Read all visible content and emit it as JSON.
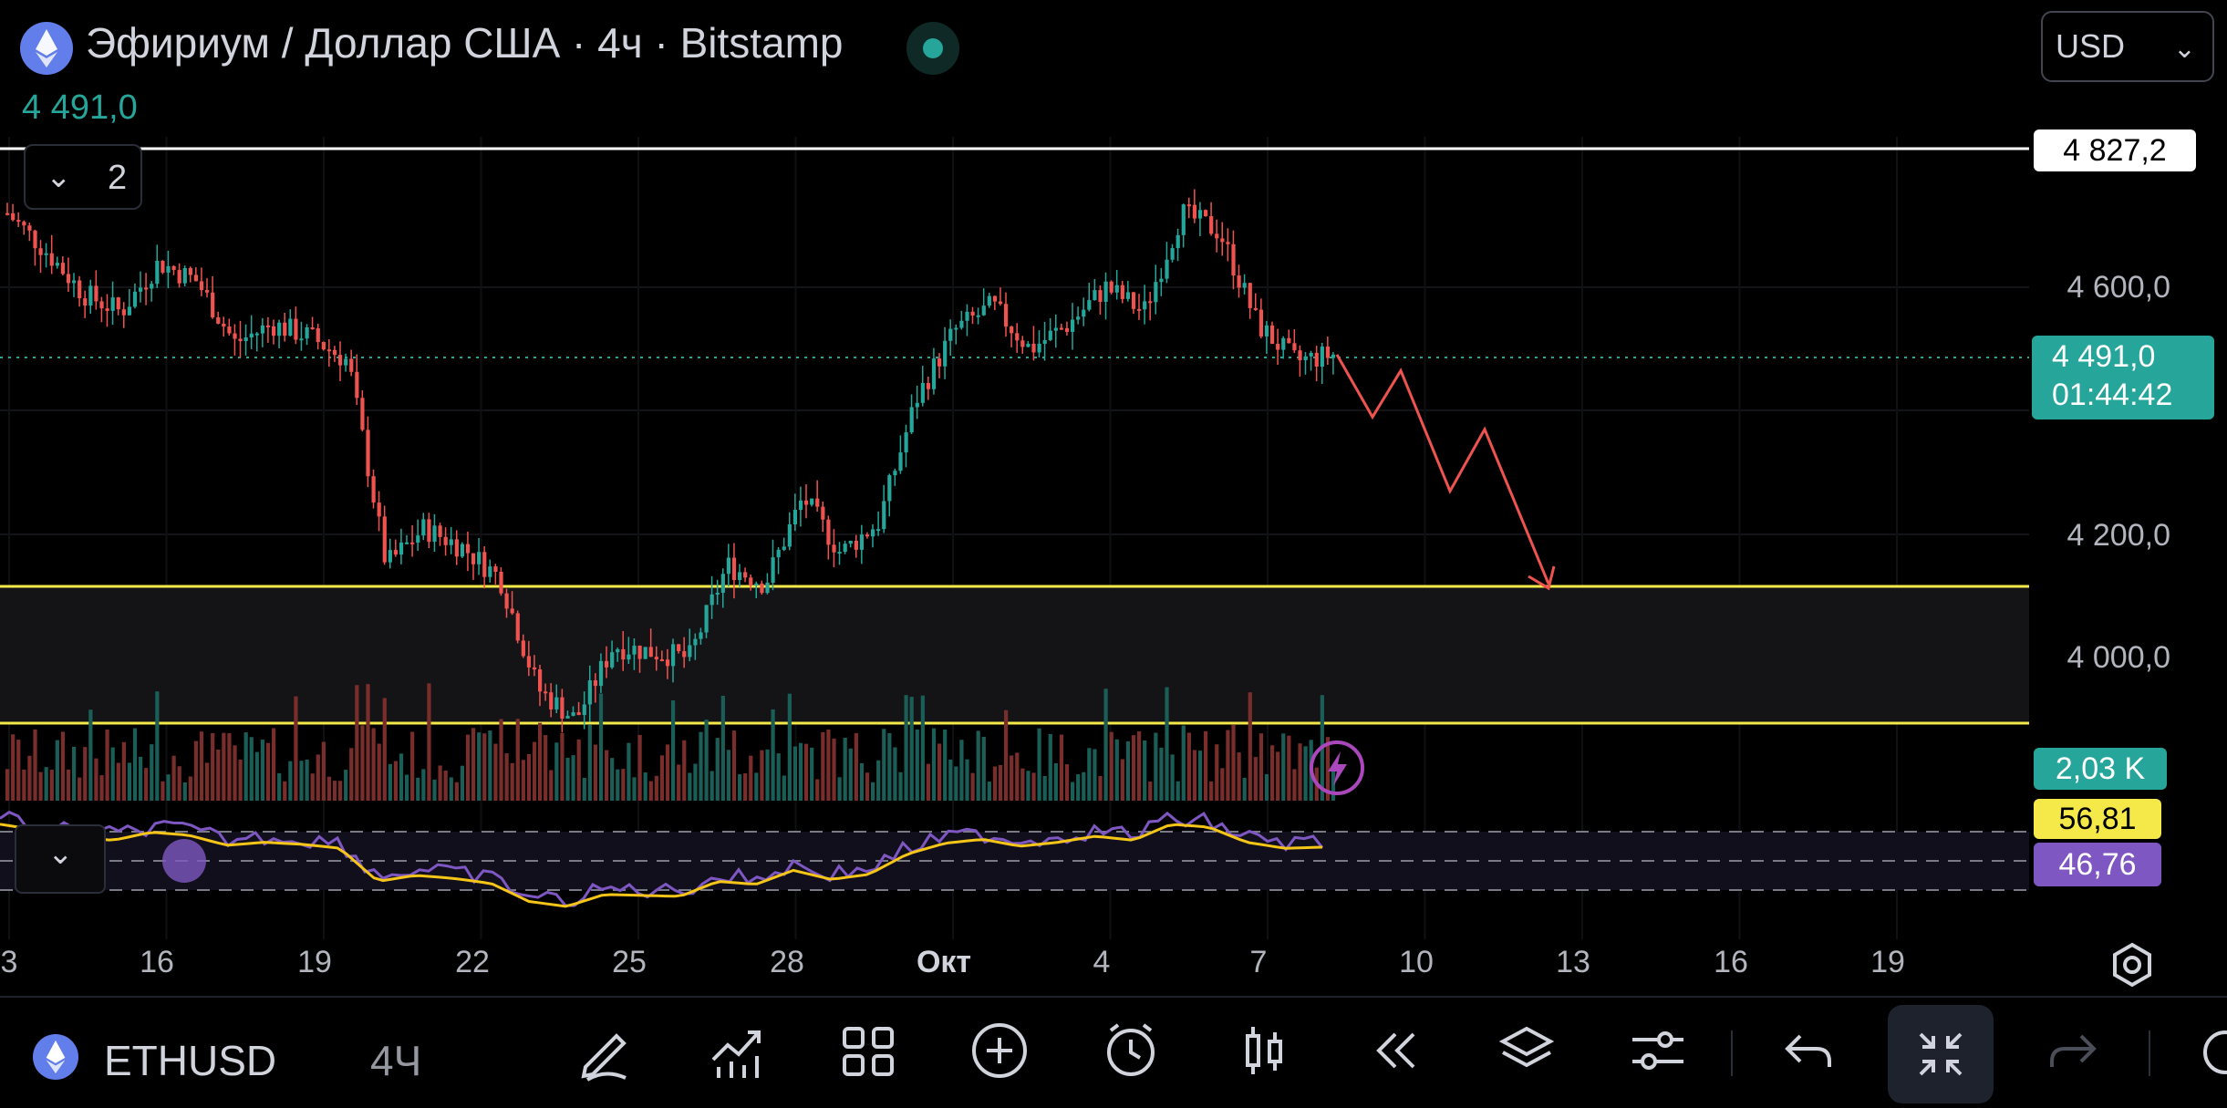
{
  "header": {
    "title": "Эфириум / Доллар США · 4ч · Bitstamp",
    "current_price": "4 491,0",
    "currency": "USD",
    "indicator_count": "2"
  },
  "price_labels": {
    "high_line": "4 827,2",
    "last_price": "4 491,0",
    "countdown": "01:44:42",
    "volume": "2,03 K",
    "ma_value": "56,81",
    "rsi_value": "46,76"
  },
  "price_axis": [
    "4 600,0",
    "4 200,0",
    "4 000,0"
  ],
  "date_axis": [
    "3",
    "16",
    "19",
    "22",
    "25",
    "28",
    "Окт",
    "4",
    "7",
    "10",
    "13",
    "16",
    "19"
  ],
  "toolbar": {
    "symbol": "ETHUSD",
    "interval": "4Ч"
  },
  "icons": {
    "logo": "ethereum-icon",
    "tools": [
      "pencil-icon",
      "indicators-icon",
      "layouts-icon",
      "add-icon",
      "alert-clock-icon",
      "candle-type-icon",
      "replay-icon",
      "layers-icon",
      "settings-sliders-icon",
      "undo-icon",
      "collapse-icon",
      "redo-icon"
    ]
  },
  "colors": {
    "up": "#26a69a",
    "down": "#ef5350",
    "support_line": "#f5e94a",
    "rsi": "#7e57c2",
    "ma": "#f5c518",
    "projection": "#ef5350"
  },
  "chart_data": {
    "type": "candlestick",
    "instrument": "ETHUSD",
    "interval": "4h",
    "x_labels": [
      "3",
      "16",
      "19",
      "22",
      "25",
      "28",
      "Окт",
      "4",
      "7",
      "10",
      "13",
      "16",
      "19"
    ],
    "y_labels": [
      4600,
      4200,
      4000
    ],
    "last_price": 4491.0,
    "horizontal_lines": [
      4827.2,
      4110,
      3890
    ],
    "support_zone": [
      3890,
      4110
    ],
    "approx_path": [
      4720,
      4660,
      4590,
      4560,
      4640,
      4610,
      4510,
      4540,
      4520,
      4480,
      4150,
      4210,
      4180,
      4130,
      3950,
      3900,
      4020,
      4010,
      4000,
      4150,
      4120,
      4260,
      4170,
      4220,
      4420,
      4530,
      4570,
      4500,
      4540,
      4600,
      4560,
      4720,
      4690,
      4540,
      4480,
      4491
    ],
    "projection_path": [
      4491,
      4390,
      4465,
      4270,
      4370,
      4120
    ]
  }
}
